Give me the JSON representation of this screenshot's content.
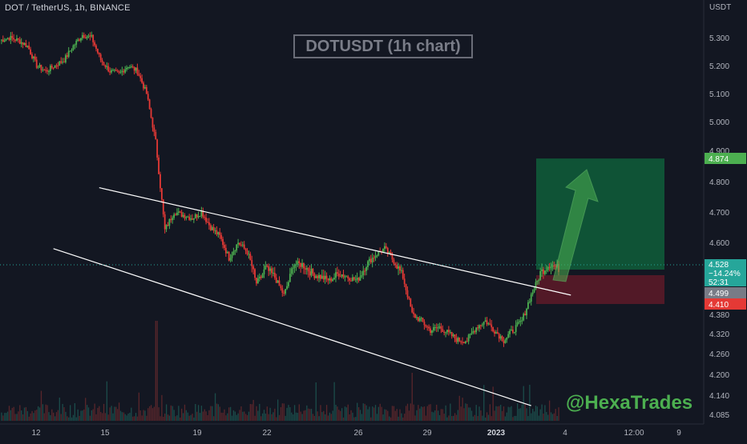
{
  "header": {
    "symbol": "DOT / TetherUS, 1h, BINANCE",
    "currency": "USDT",
    "title": "DOTUSDT (1h chart)",
    "watermark": "@HexaTrades"
  },
  "colors": {
    "background": "#131722",
    "up": "#26a69a",
    "down": "#ef5350",
    "candle_up": "#4caf50",
    "candle_down": "#e53935",
    "target_zone": "#0f5e3a",
    "stop_zone": "#5a1a28",
    "arrow": "#4caf50",
    "trendline": "#ffffff",
    "current_dotted": "#26a69a"
  },
  "chart_data": {
    "type": "candlestick",
    "x_ticks": [
      "12",
      "15",
      "19",
      "22",
      "26",
      "29",
      "2023",
      "4",
      "12:00",
      "9"
    ],
    "y_ticks": [
      "5.300",
      "5.200",
      "5.100",
      "5.000",
      "4.900",
      "4.800",
      "4.700",
      "4.600",
      "4.380",
      "4.320",
      "4.260",
      "4.200",
      "4.140",
      "4.085"
    ],
    "price_labels": [
      {
        "id": "target",
        "text": "4.874",
        "color": "#4caf50"
      },
      {
        "id": "current",
        "text": "4.528",
        "extra": [
          "−14.24%",
          "52:31"
        ],
        "color": "#26a69a"
      },
      {
        "id": "entry",
        "text": "4.499",
        "color": "#787b86"
      },
      {
        "id": "stop",
        "text": "4.410",
        "color": "#e53935"
      }
    ],
    "trade": {
      "entry": 4.499,
      "target": 4.874,
      "stop": 4.41
    },
    "series_outline": [
      [
        0,
        5.29
      ],
      [
        6,
        5.3
      ],
      [
        12,
        5.29
      ],
      [
        18,
        5.27
      ],
      [
        24,
        5.2
      ],
      [
        30,
        5.18
      ],
      [
        36,
        5.2
      ],
      [
        42,
        5.22
      ],
      [
        48,
        5.27
      ],
      [
        54,
        5.31
      ],
      [
        60,
        5.3
      ],
      [
        66,
        5.22
      ],
      [
        72,
        5.18
      ],
      [
        78,
        5.17
      ],
      [
        84,
        5.2
      ],
      [
        90,
        5.18
      ],
      [
        96,
        5.1
      ],
      [
        102,
        4.93
      ],
      [
        108,
        4.64
      ],
      [
        114,
        4.7
      ],
      [
        120,
        4.69
      ],
      [
        126,
        4.68
      ],
      [
        132,
        4.7
      ],
      [
        138,
        4.65
      ],
      [
        144,
        4.62
      ],
      [
        150,
        4.55
      ],
      [
        156,
        4.6
      ],
      [
        162,
        4.57
      ],
      [
        168,
        4.48
      ],
      [
        174,
        4.52
      ],
      [
        180,
        4.5
      ],
      [
        186,
        4.44
      ],
      [
        192,
        4.53
      ],
      [
        198,
        4.53
      ],
      [
        204,
        4.51
      ],
      [
        210,
        4.5
      ],
      [
        216,
        4.49
      ],
      [
        222,
        4.51
      ],
      [
        228,
        4.5
      ],
      [
        234,
        4.49
      ],
      [
        240,
        4.53
      ],
      [
        246,
        4.56
      ],
      [
        252,
        4.58
      ],
      [
        258,
        4.54
      ],
      [
        264,
        4.5
      ],
      [
        270,
        4.38
      ],
      [
        276,
        4.36
      ],
      [
        282,
        4.33
      ],
      [
        288,
        4.34
      ],
      [
        294,
        4.32
      ],
      [
        300,
        4.3
      ],
      [
        306,
        4.3
      ],
      [
        312,
        4.34
      ],
      [
        318,
        4.36
      ],
      [
        324,
        4.33
      ],
      [
        330,
        4.3
      ],
      [
        336,
        4.33
      ],
      [
        342,
        4.36
      ],
      [
        348,
        4.44
      ],
      [
        354,
        4.51
      ],
      [
        360,
        4.53
      ],
      [
        366,
        4.52
      ]
    ],
    "trendlines": [
      {
        "name": "upper",
        "from": [
          65,
          4.78
        ],
        "to": [
          374,
          4.44
        ]
      },
      {
        "name": "lower",
        "from": [
          35,
          4.58
        ],
        "to": [
          348,
          4.11
        ]
      }
    ]
  }
}
